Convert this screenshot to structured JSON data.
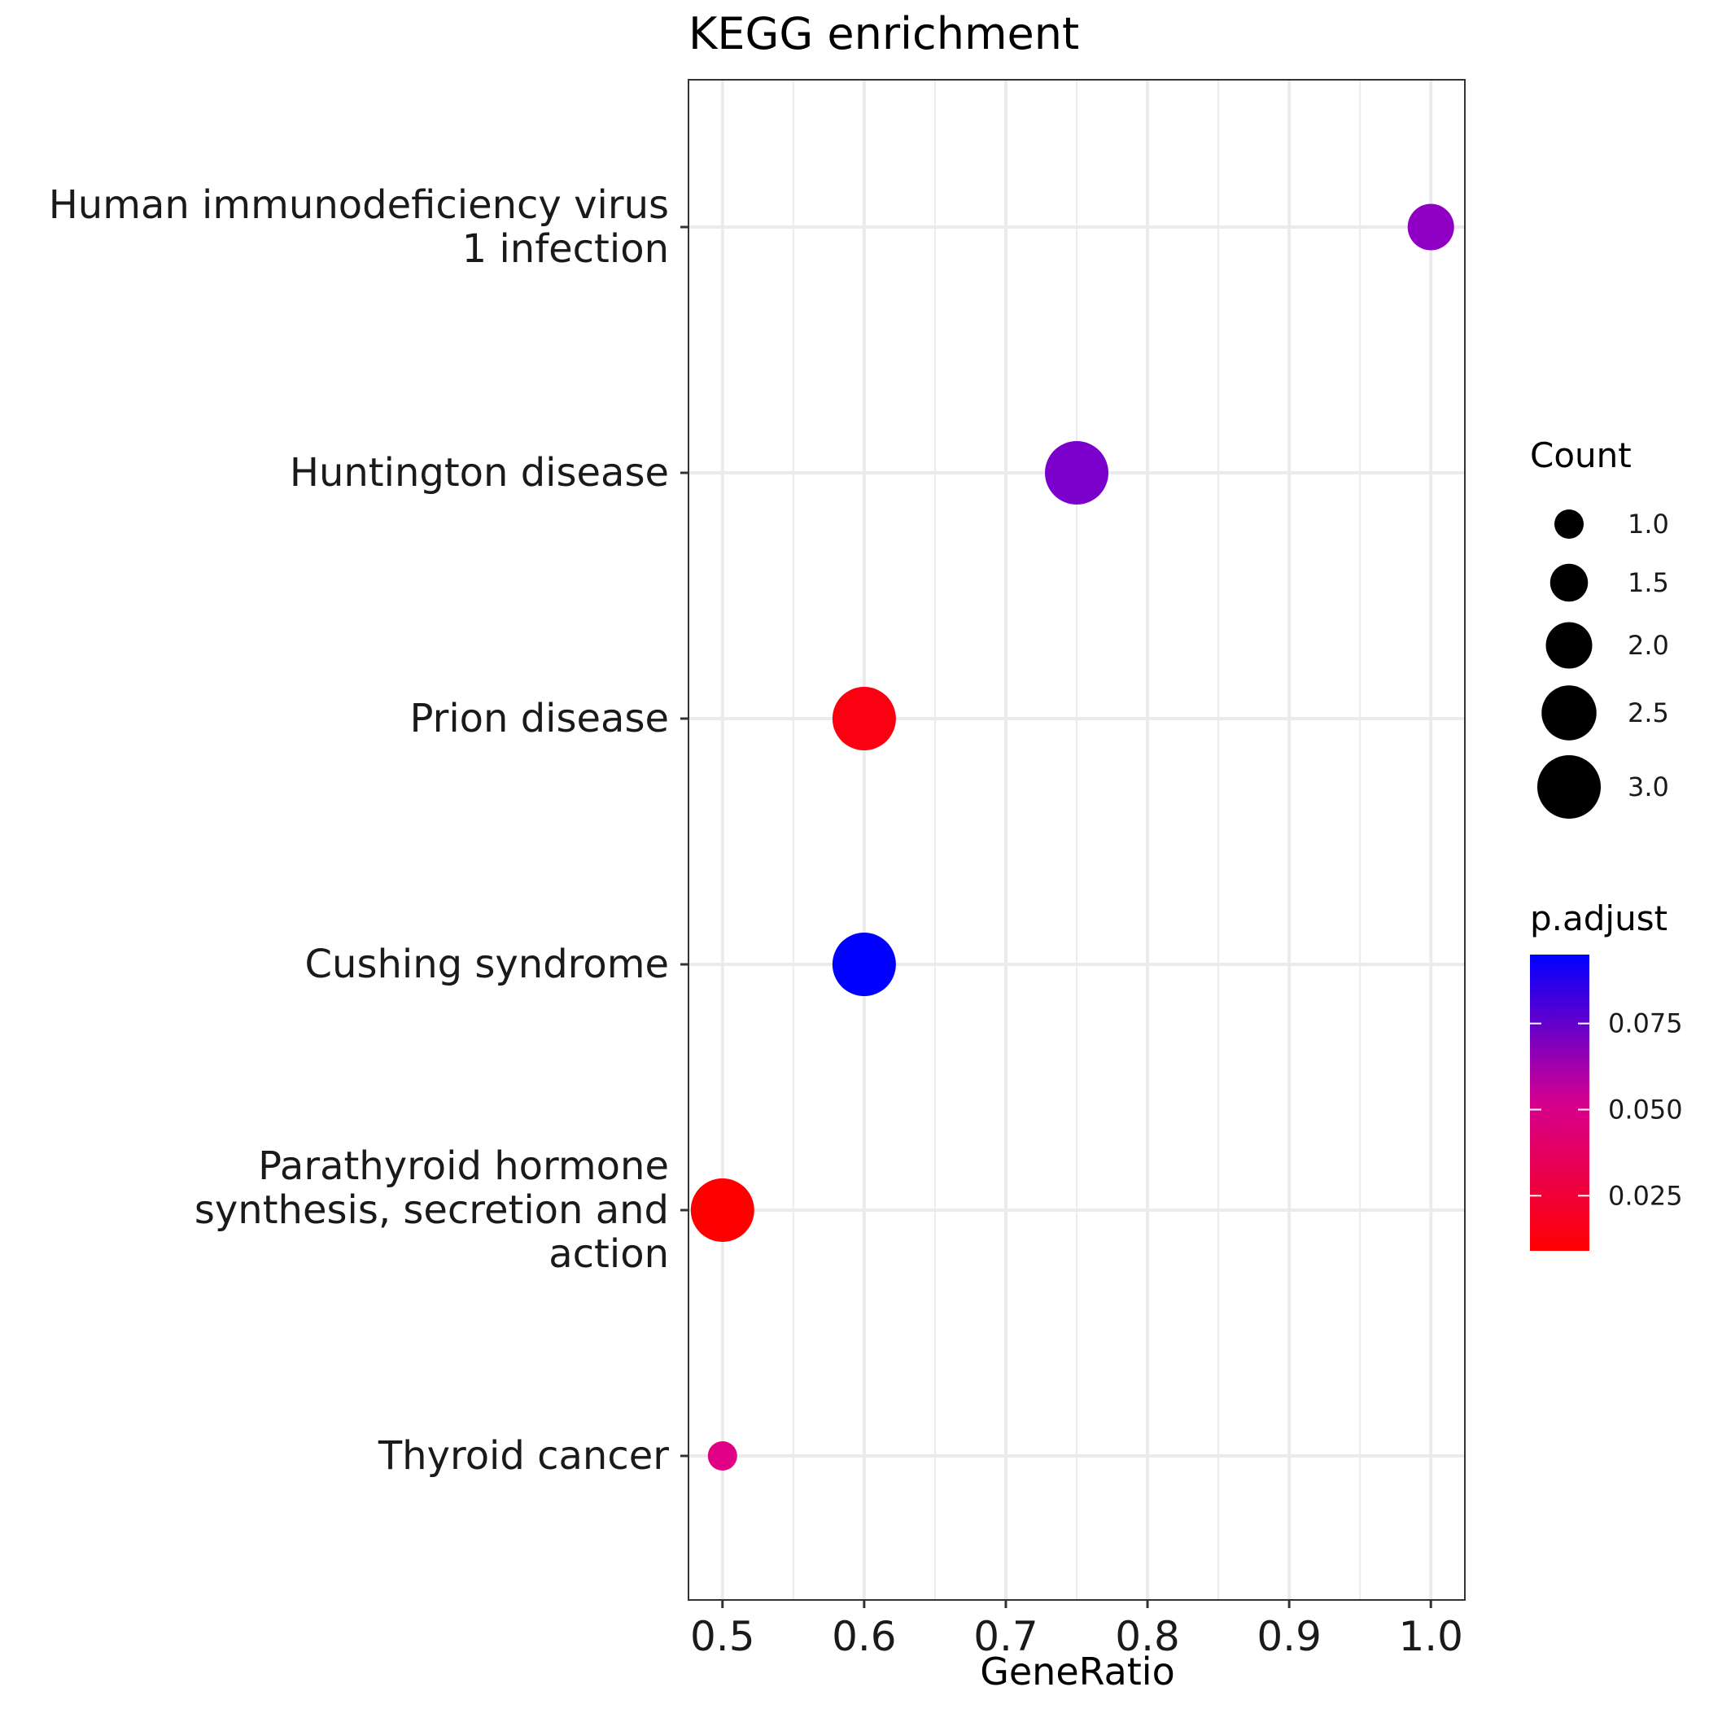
{
  "chart_data": {
    "type": "scatter",
    "title": "KEGG enrichment",
    "xlabel": "GeneRatio",
    "ylabel": "",
    "xlim": [
      0.476,
      1.024
    ],
    "x_ticks": [
      "0.5",
      "0.6",
      "0.7",
      "0.8",
      "0.9",
      "1.0"
    ],
    "x_tick_values": [
      0.5,
      0.6,
      0.7,
      0.8,
      0.9,
      1.0
    ],
    "categories": [
      [
        "Human immunodeficiency virus",
        "1 infection"
      ],
      [
        "Huntington disease"
      ],
      [
        "Prion disease"
      ],
      [
        "Cushing syndrome"
      ],
      [
        "Parathyroid hormone",
        "synthesis, secretion and",
        "action"
      ],
      [
        "Thyroid cancer"
      ]
    ],
    "points": [
      {
        "gene_ratio": 1.0,
        "count": 2,
        "p_adjust": 0.066
      },
      {
        "gene_ratio": 0.75,
        "count": 3,
        "p_adjust": 0.07
      },
      {
        "gene_ratio": 0.6,
        "count": 3,
        "p_adjust": 0.013
      },
      {
        "gene_ratio": 0.6,
        "count": 3,
        "p_adjust": 0.095
      },
      {
        "gene_ratio": 0.5,
        "count": 3,
        "p_adjust": 0.009
      },
      {
        "gene_ratio": 0.5,
        "count": 1,
        "p_adjust": 0.043
      }
    ],
    "size_legend": {
      "title": "Count",
      "values": [
        1.0,
        1.5,
        2.0,
        2.5,
        3.0
      ],
      "labels": [
        "1.0",
        "1.5",
        "2.0",
        "2.5",
        "3.0"
      ]
    },
    "color_legend": {
      "title": "p.adjust",
      "range": [
        0.009,
        0.095
      ],
      "low_color": "#ff0000",
      "high_color": "#0000ff",
      "tick_values": [
        0.025,
        0.05,
        0.075
      ],
      "tick_labels": [
        "0.025",
        "0.050",
        "0.075"
      ]
    },
    "grid": true,
    "legend_position": "right"
  }
}
